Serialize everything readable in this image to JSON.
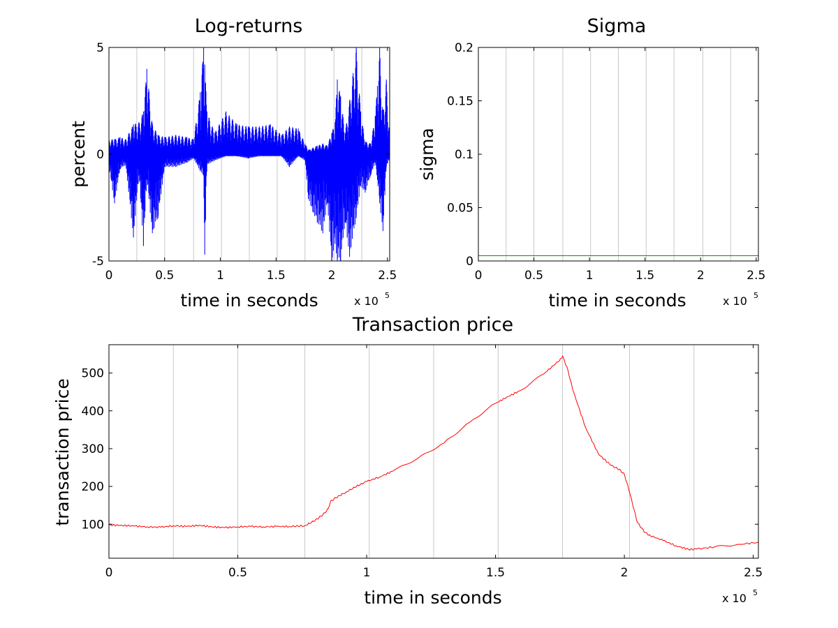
{
  "chart_data": [
    {
      "id": "logret",
      "type": "line",
      "title": "Log-returns",
      "xlabel": "time in seconds",
      "ylabel": "percent",
      "x_multiplier": "x 10",
      "x_multiplier_exp": "5",
      "xlim": [
        0,
        2.52
      ],
      "ylim": [
        -5,
        5
      ],
      "xticks": [
        0,
        0.5,
        1,
        1.5,
        2,
        2.5
      ],
      "xtick_labels": [
        "0",
        "0.5",
        "1",
        "1.5",
        "2",
        "2.5"
      ],
      "yticks": [
        -5,
        0,
        5
      ],
      "ytick_labels": [
        "-5",
        "0",
        "5"
      ],
      "vertical_gridlines_x": [
        0.25,
        0.5,
        0.76,
        1.01,
        1.26,
        1.51,
        1.76,
        2.02,
        2.27,
        2.52
      ],
      "grid": "vertical only",
      "series": [
        {
          "color": "#0000ff",
          "envelope": [
            {
              "x": 0.0,
              "hi": 0.7,
              "lo": -0.6
            },
            {
              "x": 0.05,
              "hi": 0.7,
              "lo": -2.3
            },
            {
              "x": 0.1,
              "hi": 0.8,
              "lo": -0.7
            },
            {
              "x": 0.15,
              "hi": 0.7,
              "lo": -0.5
            },
            {
              "x": 0.22,
              "hi": 1.4,
              "lo": -3.9
            },
            {
              "x": 0.27,
              "hi": 1.5,
              "lo": -1.0
            },
            {
              "x": 0.31,
              "hi": 2.0,
              "lo": -4.3
            },
            {
              "x": 0.34,
              "hi": 4.0,
              "lo": -1.2
            },
            {
              "x": 0.39,
              "hi": 1.4,
              "lo": -3.7
            },
            {
              "x": 0.44,
              "hi": 0.9,
              "lo": -3.0
            },
            {
              "x": 0.5,
              "hi": 0.8,
              "lo": -0.6
            },
            {
              "x": 0.6,
              "hi": 0.9,
              "lo": -0.6
            },
            {
              "x": 0.7,
              "hi": 0.8,
              "lo": -0.4
            },
            {
              "x": 0.76,
              "hi": 0.7,
              "lo": -0.2
            },
            {
              "x": 0.82,
              "hi": 2.9,
              "lo": -0.8
            },
            {
              "x": 0.85,
              "hi": 5.0,
              "lo": -1.0
            },
            {
              "x": 0.86,
              "hi": 4.2,
              "lo": -4.7
            },
            {
              "x": 0.88,
              "hi": 2.0,
              "lo": -0.5
            },
            {
              "x": 0.95,
              "hi": 1.0,
              "lo": -0.3
            },
            {
              "x": 1.05,
              "hi": 2.0,
              "lo": -0.1
            },
            {
              "x": 1.15,
              "hi": 1.4,
              "lo": -0.1
            },
            {
              "x": 1.25,
              "hi": 1.3,
              "lo": -0.2
            },
            {
              "x": 1.35,
              "hi": 1.3,
              "lo": -0.1
            },
            {
              "x": 1.45,
              "hi": 1.4,
              "lo": -0.1
            },
            {
              "x": 1.55,
              "hi": 0.9,
              "lo": -0.1
            },
            {
              "x": 1.62,
              "hi": 1.3,
              "lo": -0.6
            },
            {
              "x": 1.7,
              "hi": 1.2,
              "lo": -0.1
            },
            {
              "x": 1.76,
              "hi": 0.5,
              "lo": -0.3
            },
            {
              "x": 1.79,
              "hi": 0.2,
              "lo": -2.1
            },
            {
              "x": 1.83,
              "hi": 0.3,
              "lo": -2.7
            },
            {
              "x": 1.87,
              "hi": 0.4,
              "lo": -3.2
            },
            {
              "x": 1.92,
              "hi": 0.5,
              "lo": -3.7
            },
            {
              "x": 1.96,
              "hi": 0.4,
              "lo": -2.3
            },
            {
              "x": 2.0,
              "hi": 1.0,
              "lo": -5.0
            },
            {
              "x": 2.03,
              "hi": 1.5,
              "lo": -4.2
            },
            {
              "x": 2.05,
              "hi": 3.5,
              "lo": -5.0
            },
            {
              "x": 2.08,
              "hi": 2.7,
              "lo": -5.0
            },
            {
              "x": 2.12,
              "hi": 1.0,
              "lo": -3.2
            },
            {
              "x": 2.16,
              "hi": 2.5,
              "lo": -4.8
            },
            {
              "x": 2.22,
              "hi": 5.0,
              "lo": -3.0
            },
            {
              "x": 2.26,
              "hi": 2.0,
              "lo": -1.5
            },
            {
              "x": 2.3,
              "hi": 0.6,
              "lo": -1.8
            },
            {
              "x": 2.35,
              "hi": 0.5,
              "lo": -1.0
            },
            {
              "x": 2.39,
              "hi": 1.8,
              "lo": -0.4
            },
            {
              "x": 2.41,
              "hi": 3.2,
              "lo": -1.2
            },
            {
              "x": 2.43,
              "hi": 5.0,
              "lo": -2.3
            },
            {
              "x": 2.46,
              "hi": 2.0,
              "lo": -3.6
            },
            {
              "x": 2.49,
              "hi": 3.5,
              "lo": -0.6
            },
            {
              "x": 2.52,
              "hi": 1.0,
              "lo": -0.2
            }
          ]
        }
      ]
    },
    {
      "id": "sigma",
      "type": "line",
      "title": "Sigma",
      "xlabel": "time in seconds",
      "ylabel": "sigma",
      "x_multiplier": "x 10",
      "x_multiplier_exp": "5",
      "xlim": [
        0,
        2.52
      ],
      "ylim": [
        0,
        0.2
      ],
      "xticks": [
        0,
        0.5,
        1,
        1.5,
        2,
        2.5
      ],
      "xtick_labels": [
        "0",
        "0.5",
        "1",
        "1.5",
        "2",
        "2.5"
      ],
      "yticks": [
        0,
        0.05,
        0.1,
        0.15,
        0.2
      ],
      "ytick_labels": [
        "0",
        "0.05",
        "0.1",
        "0.15",
        "0.2"
      ],
      "vertical_gridlines_x": [
        0.25,
        0.5,
        0.76,
        1.01,
        1.26,
        1.51,
        1.76,
        2.02,
        2.27,
        2.52
      ],
      "grid": "vertical only",
      "series": [
        {
          "color": "#008000",
          "x": [
            0,
            2.52
          ],
          "y": [
            0.005,
            0.005
          ]
        }
      ]
    },
    {
      "id": "price",
      "type": "line",
      "title": "Transaction price",
      "xlabel": "time in seconds",
      "ylabel": "transaction price",
      "x_multiplier": "x 10",
      "x_multiplier_exp": "5",
      "xlim": [
        0,
        2.52
      ],
      "ylim": [
        10,
        575
      ],
      "xticks": [
        0,
        0.5,
        1,
        1.5,
        2,
        2.5
      ],
      "xtick_labels": [
        "0",
        "0.5",
        "1",
        "1.5",
        "2",
        "2.5"
      ],
      "yticks": [
        100,
        200,
        300,
        400,
        500
      ],
      "ytick_labels": [
        "100",
        "200",
        "300",
        "400",
        "500"
      ],
      "vertical_gridlines_x": [
        0.25,
        0.5,
        0.76,
        1.01,
        1.26,
        1.51,
        1.76,
        2.02,
        2.27,
        2.52
      ],
      "grid": "vertical only",
      "series": [
        {
          "color": "#ff0000",
          "x": [
            0,
            0.05,
            0.1,
            0.15,
            0.2,
            0.25,
            0.3,
            0.35,
            0.4,
            0.45,
            0.5,
            0.55,
            0.6,
            0.65,
            0.7,
            0.76,
            0.8,
            0.83,
            0.85,
            0.86,
            0.88,
            0.92,
            0.96,
            1.0,
            1.05,
            1.1,
            1.2,
            1.3,
            1.4,
            1.5,
            1.55,
            1.6,
            1.7,
            1.75,
            1.76,
            1.78,
            1.8,
            1.85,
            1.9,
            1.95,
            1.98,
            2.0,
            2.02,
            2.05,
            2.08,
            2.1,
            2.15,
            2.2,
            2.25,
            2.28,
            2.35,
            2.45,
            2.52
          ],
          "y": [
            98,
            97,
            95,
            93,
            92,
            96,
            94,
            97,
            93,
            91,
            93,
            94,
            93,
            94,
            94,
            96,
            110,
            125,
            140,
            160,
            170,
            185,
            200,
            213,
            225,
            240,
            275,
            315,
            370,
            420,
            438,
            455,
            505,
            535,
            545,
            510,
            455,
            355,
            285,
            255,
            245,
            232,
            185,
            105,
            78,
            70,
            57,
            43,
            33,
            34,
            40,
            47,
            52
          ]
        }
      ]
    }
  ]
}
